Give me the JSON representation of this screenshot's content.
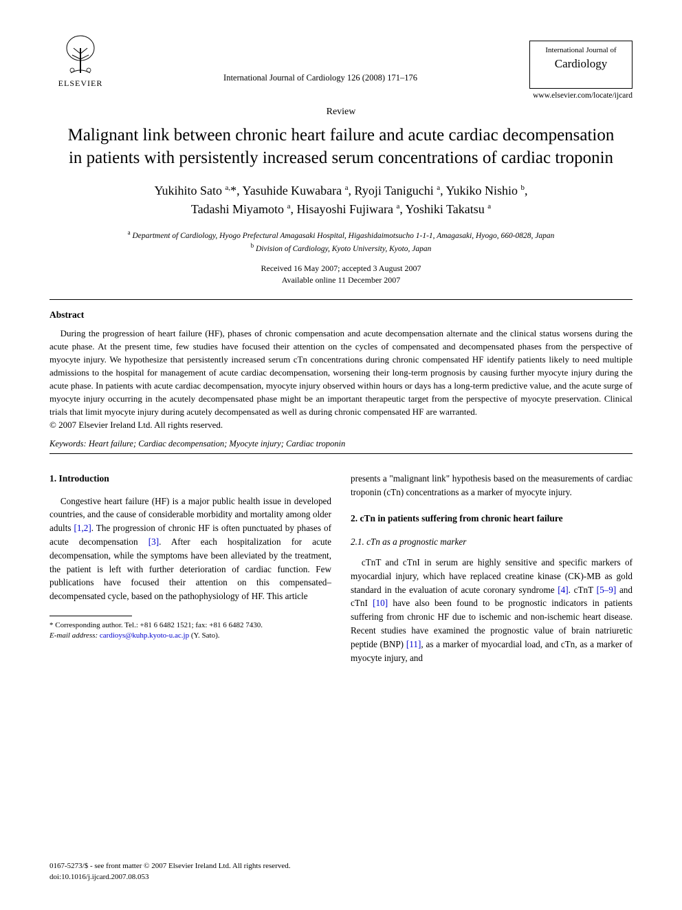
{
  "header": {
    "publisher": "ELSEVIER",
    "journal_ref": "International Journal of Cardiology 126 (2008) 171–176",
    "journal_box_line1": "International Journal of",
    "journal_box_name": "Cardiology",
    "journal_url": "www.elsevier.com/locate/ijcard"
  },
  "article": {
    "type": "Review",
    "title": "Malignant link between chronic heart failure and acute cardiac decompensation in patients with persistently increased serum concentrations of cardiac troponin",
    "authors_line1_html": "Yukihito Sato <sup>a,</sup>*, Yasuhide Kuwabara <sup>a</sup>, Ryoji Taniguchi <sup>a</sup>, Yukiko Nishio <sup>b</sup>,",
    "authors_line2_html": "Tadashi Miyamoto <sup>a</sup>, Hisayoshi Fujiwara <sup>a</sup>, Yoshiki Takatsu <sup>a</sup>",
    "affiliation_a": "Department of Cardiology, Hyogo Prefectural Amagasaki Hospital, Higashidaimotsucho 1-1-1, Amagasaki, Hyogo, 660-0828, Japan",
    "affiliation_b": "Division of Cardiology, Kyoto University, Kyoto, Japan",
    "received": "Received 16 May 2007; accepted 3 August 2007",
    "available": "Available online 11 December 2007"
  },
  "abstract": {
    "heading": "Abstract",
    "text": "During the progression of heart failure (HF), phases of chronic compensation and acute decompensation alternate and the clinical status worsens during the acute phase. At the present time, few studies have focused their attention on the cycles of compensated and decompensated phases from the perspective of myocyte injury. We hypothesize that persistently increased serum cTn concentrations during chronic compensated HF identify patients likely to need multiple admissions to the hospital for management of acute cardiac decompensation, worsening their long-term prognosis by causing further myocyte injury during the acute phase. In patients with acute cardiac decompensation, myocyte injury observed within hours or days has a long-term predictive value, and the acute surge of myocyte injury occurring in the acutely decompensated phase might be an important therapeutic target from the perspective of myocyte preservation. Clinical trials that limit myocyte injury during acutely decompensated as well as during chronic compensated HF are warranted.",
    "copyright": "© 2007 Elsevier Ireland Ltd. All rights reserved."
  },
  "keywords": {
    "label": "Keywords:",
    "list": "Heart failure; Cardiac decompensation; Myocyte injury; Cardiac troponin"
  },
  "body": {
    "sec1_heading": "1. Introduction",
    "sec1_p1_pre": "Congestive heart failure (HF) is a major public health issue in developed countries, and the cause of considerable morbidity and mortality among older adults ",
    "ref12": "[1,2]",
    "sec1_p1_mid": ". The progression of chronic HF is often punctuated by phases of acute decompensation ",
    "ref3": "[3]",
    "sec1_p1_post": ". After each hospitalization for acute decompensation, while the symptoms have been alleviated by the treatment, the patient is left with further deterioration of cardiac function. Few publications have focused their attention on this compensated–decompensated cycle, based on the pathophysiology of HF. This article",
    "sec1_p1_col2": "presents a \"malignant link\" hypothesis based on the measurements of cardiac troponin (cTn) concentrations as a marker of myocyte injury.",
    "sec2_heading": "2. cTn in patients suffering from chronic heart failure",
    "sec21_heading": "2.1. cTn as a prognostic marker",
    "sec21_p1_a": "cTnT and cTnI in serum are highly sensitive and specific markers of myocardial injury, which have replaced creatine kinase (CK)-MB as gold standard in the evaluation of acute coronary syndrome ",
    "ref4": "[4]",
    "sec21_p1_b": ". cTnT ",
    "ref59": "[5–9]",
    "sec21_p1_c": " and cTnI ",
    "ref10": "[10]",
    "sec21_p1_d": " have also been found to be prognostic indicators in patients suffering from chronic HF due to ischemic and non-ischemic heart disease. Recent studies have examined the prognostic value of brain natriuretic peptide (BNP) ",
    "ref11": "[11]",
    "sec21_p1_e": ", as a marker of myocardial load, and cTn, as a marker of myocyte injury, and"
  },
  "footnote": {
    "corr": "* Corresponding author. Tel.: +81 6 6482 1521; fax: +81 6 6482 7430.",
    "email_label": "E-mail address:",
    "email": "cardioys@kuhp.kyoto-u.ac.jp",
    "email_who": "(Y. Sato)."
  },
  "footer": {
    "line1": "0167-5273/$ - see front matter © 2007 Elsevier Ireland Ltd. All rights reserved.",
    "line2": "doi:10.1016/j.ijcard.2007.08.053"
  },
  "colors": {
    "text": "#000000",
    "link": "#0000cc",
    "bg": "#ffffff"
  }
}
